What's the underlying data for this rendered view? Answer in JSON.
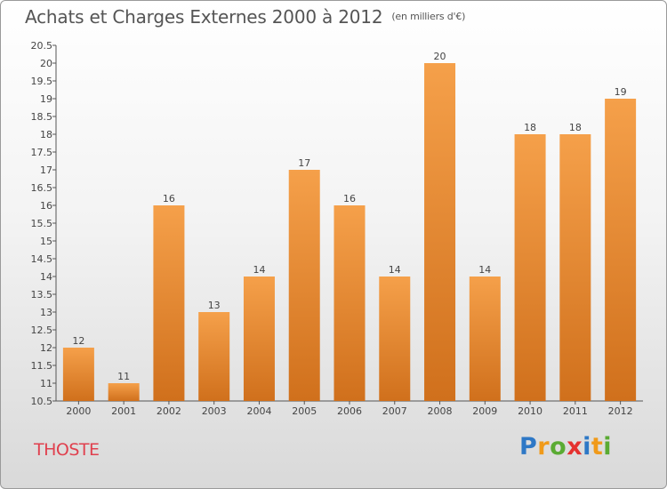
{
  "header": {
    "title": "Achats et Charges Externes 2000 à 2012",
    "unit": "(en milliers d'€)"
  },
  "location": "THOSTE",
  "logo": {
    "letters": [
      "P",
      "r",
      "o",
      "x",
      "i",
      "t",
      "i"
    ],
    "colors": [
      "#2e78c6",
      "#f09a1a",
      "#5aab33",
      "#e5312f",
      "#2e78c6",
      "#f09a1a",
      "#5aab33"
    ]
  },
  "chart_data": {
    "type": "bar",
    "title": "Achats et Charges Externes 2000 à 2012",
    "subtitle": "(en milliers d'€)",
    "categories": [
      "2000",
      "2001",
      "2002",
      "2003",
      "2004",
      "2005",
      "2006",
      "2007",
      "2008",
      "2009",
      "2010",
      "2011",
      "2012"
    ],
    "values": [
      12,
      11,
      16,
      13,
      14,
      17,
      16,
      14,
      20,
      14,
      18,
      18,
      19
    ],
    "data_labels": [
      "12",
      "11",
      "16",
      "13",
      "14",
      "17",
      "16",
      "14",
      "20",
      "14",
      "18",
      "18",
      "19"
    ],
    "ylim": [
      10.5,
      20.5
    ],
    "yticks": [
      10.5,
      11,
      11.5,
      12,
      12.5,
      13,
      13.5,
      14,
      14.5,
      15,
      15.5,
      16,
      16.5,
      17,
      17.5,
      18,
      18.5,
      19,
      19.5,
      20,
      20.5
    ],
    "ytick_labels": [
      "10.5",
      "11",
      "11.5",
      "12",
      "12.5",
      "13",
      "13.5",
      "14",
      "14.5",
      "15",
      "15.5",
      "16",
      "16.5",
      "17",
      "17.5",
      "18",
      "18.5",
      "19",
      "19.5",
      "20",
      "20.5"
    ],
    "bar_color": "#f5a04a",
    "bar_color_dark": "#d0701c",
    "grid": false,
    "legend": "none"
  }
}
